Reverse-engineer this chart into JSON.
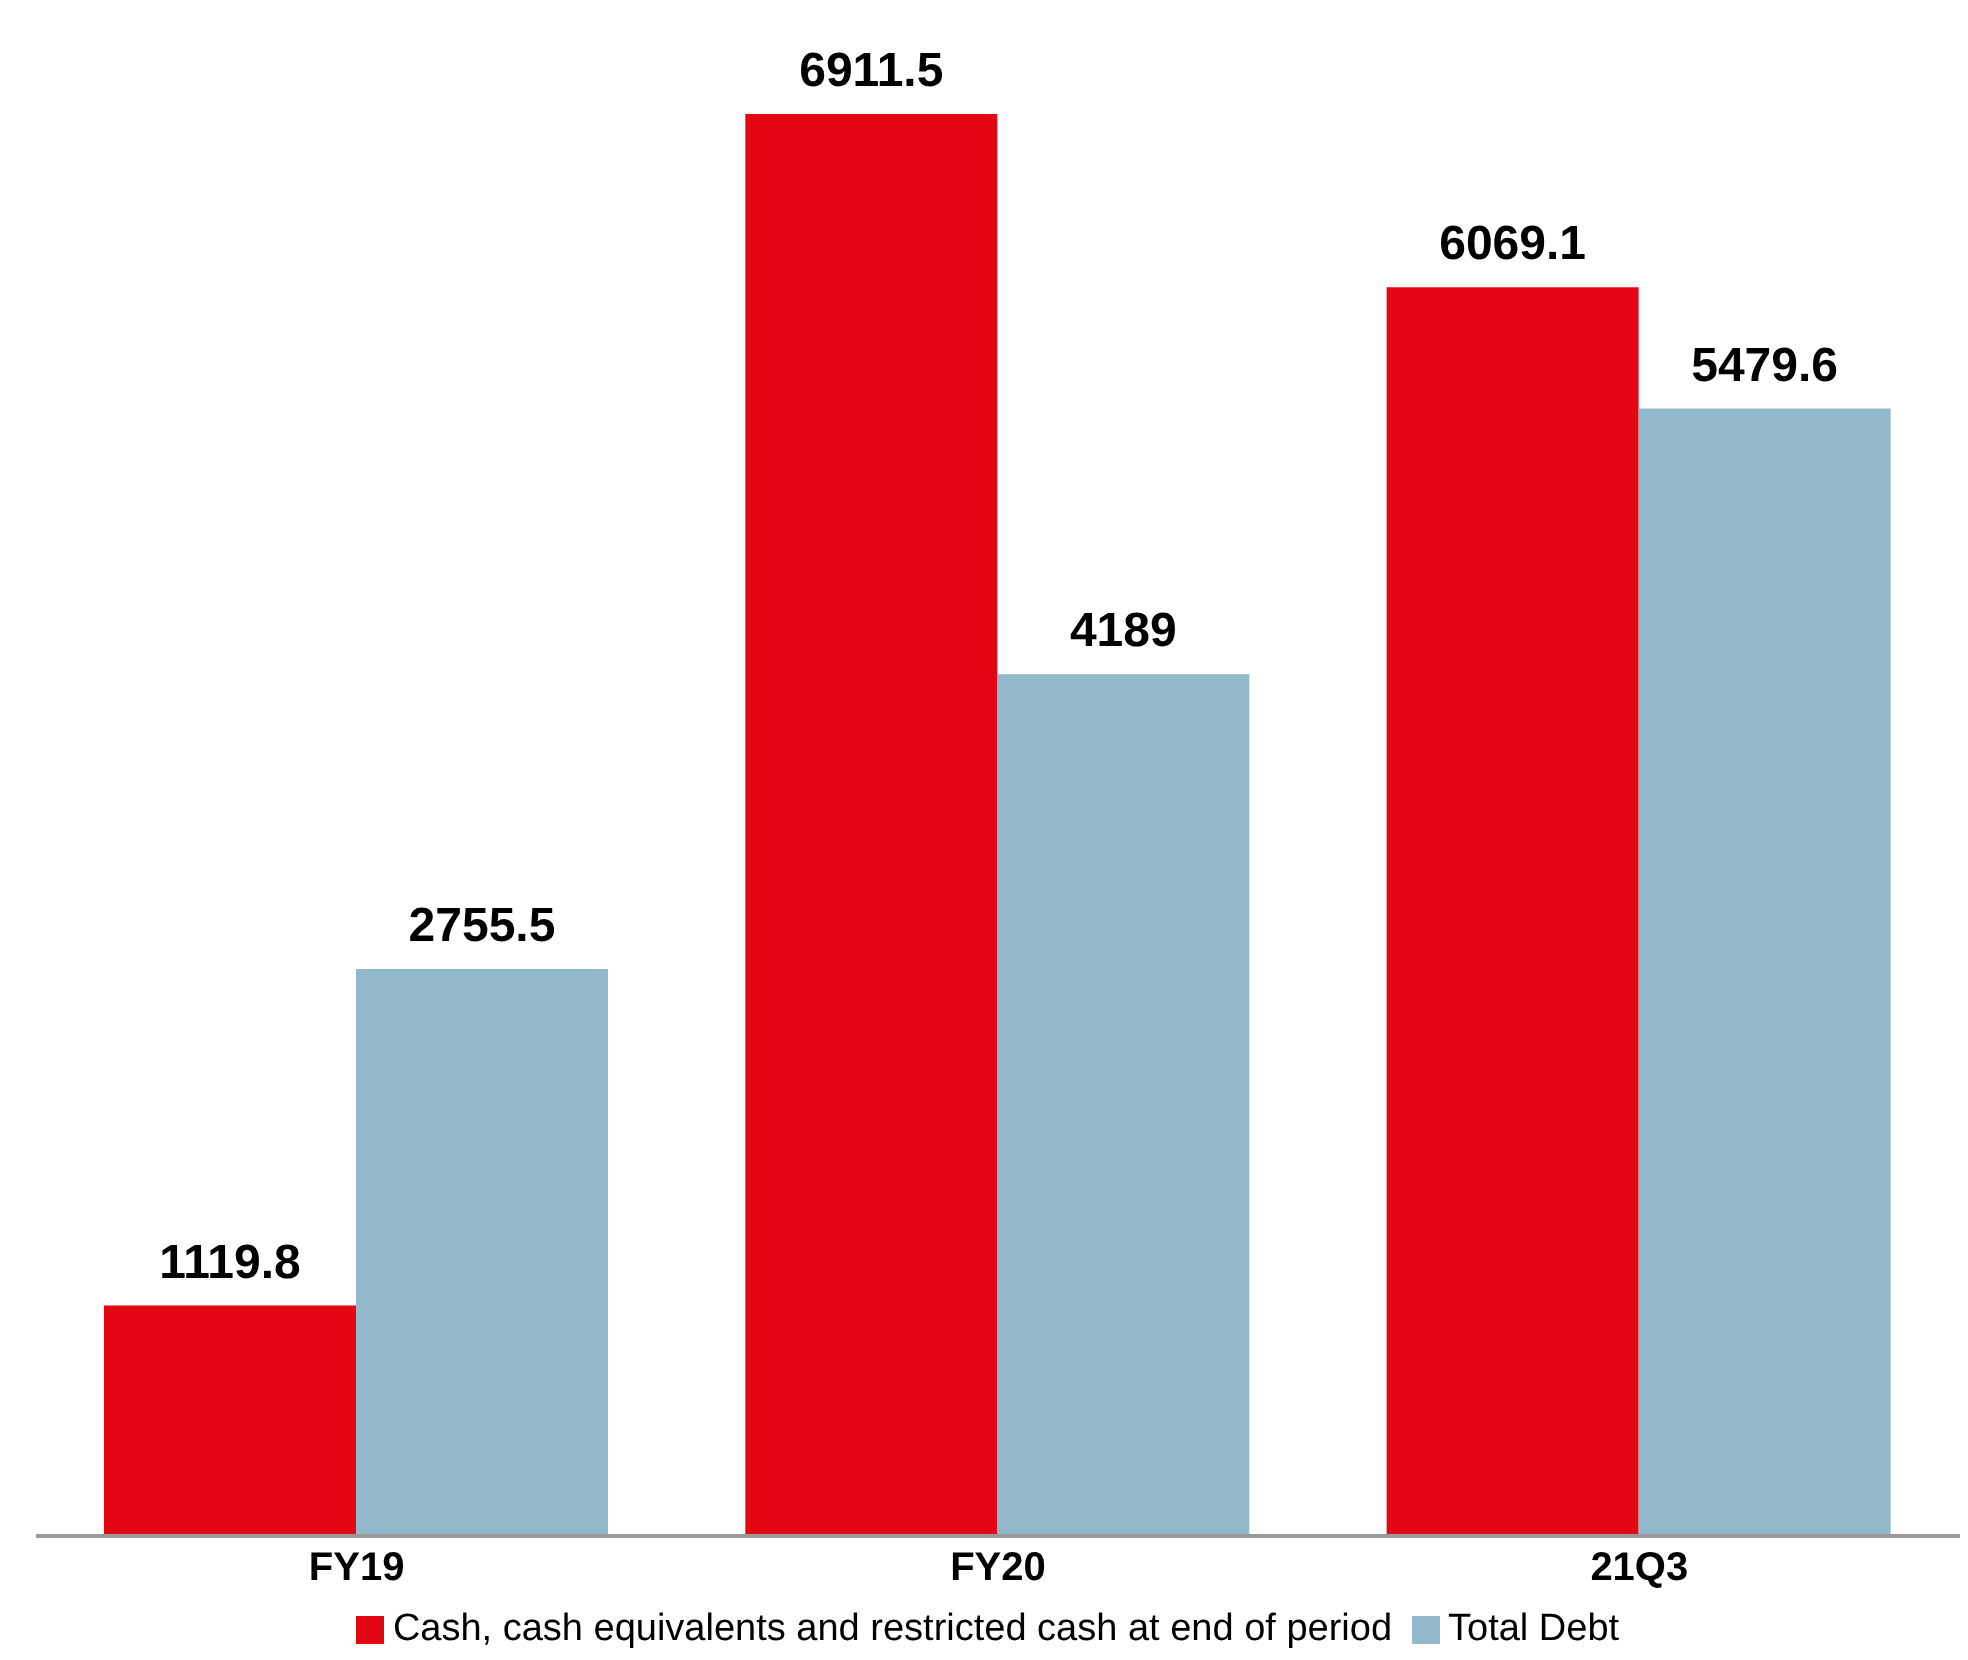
{
  "chart_data": {
    "type": "bar",
    "categories": [
      "FY19",
      "FY20",
      "21Q3"
    ],
    "series": [
      {
        "name": "Cash, cash equivalents and restricted cash at end of period",
        "color": "#e30613",
        "values": [
          1119.8,
          6911.5,
          6069.1
        ]
      },
      {
        "name": "Total Debt",
        "color": "#92b8cb",
        "values": [
          2755.5,
          4189,
          5479.6
        ]
      }
    ],
    "data_labels": true,
    "legend": "bottom",
    "grid": false
  }
}
